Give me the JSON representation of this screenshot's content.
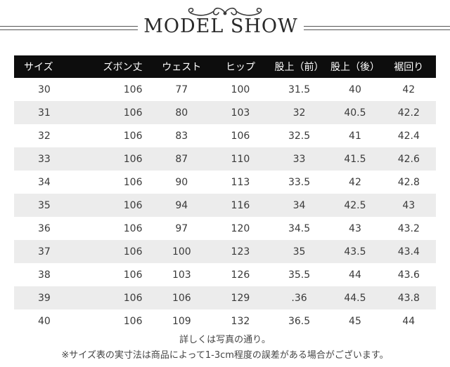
{
  "header": {
    "title": "MODEL SHOW",
    "ornament_icon": "decorative-flourish"
  },
  "table": {
    "columns": [
      "サイズ",
      "ズボン丈",
      "ウェスト",
      "ヒップ",
      "股上（前）",
      "股上（後）",
      "裾回り"
    ],
    "rows": [
      [
        "30",
        "106",
        "77",
        "100",
        "31.5",
        "40",
        "42"
      ],
      [
        "31",
        "106",
        "80",
        "103",
        "32",
        "40.5",
        "42.2"
      ],
      [
        "32",
        "106",
        "83",
        "106",
        "32.5",
        "41",
        "42.4"
      ],
      [
        "33",
        "106",
        "87",
        "110",
        "33",
        "41.5",
        "42.6"
      ],
      [
        "34",
        "106",
        "90",
        "113",
        "33.5",
        "42",
        "42.8"
      ],
      [
        "35",
        "106",
        "94",
        "116",
        "34",
        "42.5",
        "43"
      ],
      [
        "36",
        "106",
        "97",
        "120",
        "34.5",
        "43",
        "43.2"
      ],
      [
        "37",
        "106",
        "100",
        "123",
        "35",
        "43.5",
        "43.4"
      ],
      [
        "38",
        "106",
        "103",
        "126",
        "35.5",
        "44",
        "43.6"
      ],
      [
        "39",
        "106",
        "106",
        "129",
        ".36",
        "44.5",
        "43.8"
      ],
      [
        "40",
        "106",
        "109",
        "132",
        "36.5",
        "45",
        "44"
      ]
    ]
  },
  "notes": {
    "line1": "詳しくは写真の通り。",
    "line2": "※サイズ表の実寸法は商品によって1-3cm程度の誤差がある場合がございます。"
  }
}
